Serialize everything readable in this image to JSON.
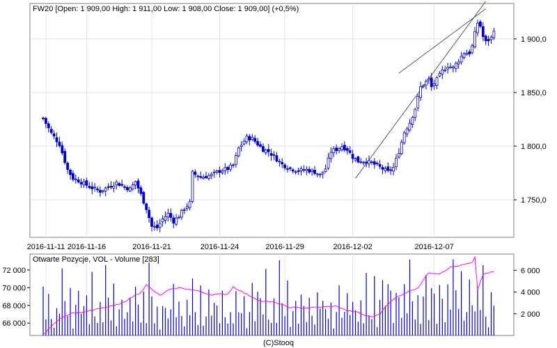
{
  "chart_data": [
    {
      "type": "candlestick",
      "title": "FW20 [Open: 1 909,00  High: 1 911,00  Low: 1 908,00  Close: 1 909,00] (+0,5%)",
      "ylim": [
        1715,
        1933
      ],
      "y_ticks": [
        "1 750,0",
        "1 800,0",
        "1 850,0",
        "1 900,0"
      ],
      "y_tick_values": [
        1750,
        1800,
        1850,
        1900
      ],
      "x_tick_labels": [
        "2016-11-11",
        "2016-11-16",
        "2016-11-21",
        "2016-11-24",
        "2016-11-29",
        "2016-12-02",
        "2016-12-07"
      ],
      "x_tick_index": [
        1,
        16,
        40,
        65,
        89,
        114,
        144
      ],
      "grid": true,
      "series_color": "#0000cc",
      "trendlines": [
        {
          "from": [
            115,
            1770
          ],
          "to": [
            163,
            1935
          ]
        },
        {
          "from": [
            131,
            1868
          ],
          "to": [
            163,
            1928
          ]
        }
      ],
      "anchors": [
        [
          0,
          1826
        ],
        [
          3,
          1812
        ],
        [
          6,
          1802
        ],
        [
          9,
          1778
        ],
        [
          11,
          1770
        ],
        [
          13,
          1768
        ],
        [
          15,
          1765
        ],
        [
          18,
          1761
        ],
        [
          21,
          1758
        ],
        [
          24,
          1762
        ],
        [
          27,
          1766
        ],
        [
          30,
          1762
        ],
        [
          32,
          1760
        ],
        [
          34,
          1767
        ],
        [
          36,
          1755
        ],
        [
          38,
          1742
        ],
        [
          40,
          1725
        ],
        [
          42,
          1724
        ],
        [
          44,
          1732
        ],
        [
          46,
          1737
        ],
        [
          48,
          1730
        ],
        [
          50,
          1735
        ],
        [
          52,
          1742
        ],
        [
          54,
          1747
        ],
        [
          55,
          1775
        ],
        [
          58,
          1771
        ],
        [
          62,
          1773
        ],
        [
          65,
          1777
        ],
        [
          68,
          1779
        ],
        [
          70,
          1782
        ],
        [
          72,
          1798
        ],
        [
          75,
          1808
        ],
        [
          77,
          1807
        ],
        [
          79,
          1802
        ],
        [
          81,
          1797
        ],
        [
          83,
          1795
        ],
        [
          86,
          1788
        ],
        [
          88,
          1783
        ],
        [
          91,
          1779
        ],
        [
          94,
          1777
        ],
        [
          97,
          1778
        ],
        [
          100,
          1776
        ],
        [
          102,
          1773
        ],
        [
          104,
          1779
        ],
        [
          106,
          1795
        ],
        [
          108,
          1797
        ],
        [
          110,
          1800
        ],
        [
          112,
          1797
        ],
        [
          114,
          1790
        ],
        [
          116,
          1786
        ],
        [
          119,
          1786
        ],
        [
          122,
          1783
        ],
        [
          125,
          1779
        ],
        [
          127,
          1776
        ],
        [
          129,
          1780
        ],
        [
          131,
          1795
        ],
        [
          133,
          1813
        ],
        [
          135,
          1822
        ],
        [
          137,
          1835
        ],
        [
          139,
          1855
        ],
        [
          141,
          1860
        ],
        [
          142,
          1862
        ],
        [
          143,
          1855
        ],
        [
          145,
          1862
        ],
        [
          147,
          1870
        ],
        [
          149,
          1875
        ],
        [
          151,
          1873
        ],
        [
          153,
          1880
        ],
        [
          155,
          1887
        ],
        [
          157,
          1887
        ],
        [
          158,
          1893
        ],
        [
          159,
          1905
        ],
        [
          160,
          1915
        ],
        [
          161,
          1912
        ],
        [
          162,
          1902
        ],
        [
          163,
          1897
        ],
        [
          165,
          1901
        ],
        [
          166,
          1909
        ]
      ]
    },
    {
      "type": "bar+line",
      "title": "Otwarte Pozycje, VOL - Volume [283]",
      "left_axis": {
        "label_ticks": [
          "66 000",
          "68 000",
          "70 000",
          "72 000"
        ],
        "tick_values": [
          66000,
          68000,
          70000,
          72000
        ],
        "range": [
          64600,
          73800
        ]
      },
      "right_axis": {
        "label_ticks": [
          "2 000",
          "4 000",
          "6 000"
        ],
        "tick_values": [
          2000,
          4000,
          6000
        ],
        "range": [
          0,
          7500
        ]
      },
      "bar_color": "#0000cc",
      "line_color": "#ff00ff",
      "open_interest_anchors": [
        [
          0,
          64700
        ],
        [
          3,
          65600
        ],
        [
          6,
          66500
        ],
        [
          10,
          67100
        ],
        [
          16,
          67300
        ],
        [
          22,
          67700
        ],
        [
          28,
          68100
        ],
        [
          32,
          68800
        ],
        [
          36,
          69500
        ],
        [
          38,
          70300
        ],
        [
          40,
          69800
        ],
        [
          43,
          69100
        ],
        [
          46,
          69700
        ],
        [
          50,
          70000
        ],
        [
          56,
          69700
        ],
        [
          62,
          69200
        ],
        [
          68,
          69300
        ],
        [
          70,
          70100
        ],
        [
          74,
          69400
        ],
        [
          80,
          68500
        ],
        [
          86,
          68300
        ],
        [
          90,
          67800
        ],
        [
          96,
          67700
        ],
        [
          102,
          67800
        ],
        [
          108,
          67900
        ],
        [
          112,
          67400
        ],
        [
          116,
          67200
        ],
        [
          118,
          66900
        ],
        [
          121,
          66700
        ],
        [
          124,
          67000
        ],
        [
          126,
          67900
        ],
        [
          130,
          68900
        ],
        [
          134,
          69500
        ],
        [
          138,
          70000
        ],
        [
          142,
          71700
        ],
        [
          146,
          71600
        ],
        [
          150,
          72300
        ],
        [
          155,
          72600
        ],
        [
          158,
          72800
        ],
        [
          159,
          73400
        ],
        [
          160,
          69800
        ],
        [
          162,
          71500
        ],
        [
          166,
          71800
        ]
      ],
      "volume_pattern": [
        3500,
        1400,
        4600,
        2100,
        1000,
        3000,
        1800,
        5300,
        2600,
        1500,
        3800,
        900,
        2200,
        4100,
        1600,
        2900
      ]
    }
  ],
  "footer": {
    "credit": "(C)Stooq"
  }
}
